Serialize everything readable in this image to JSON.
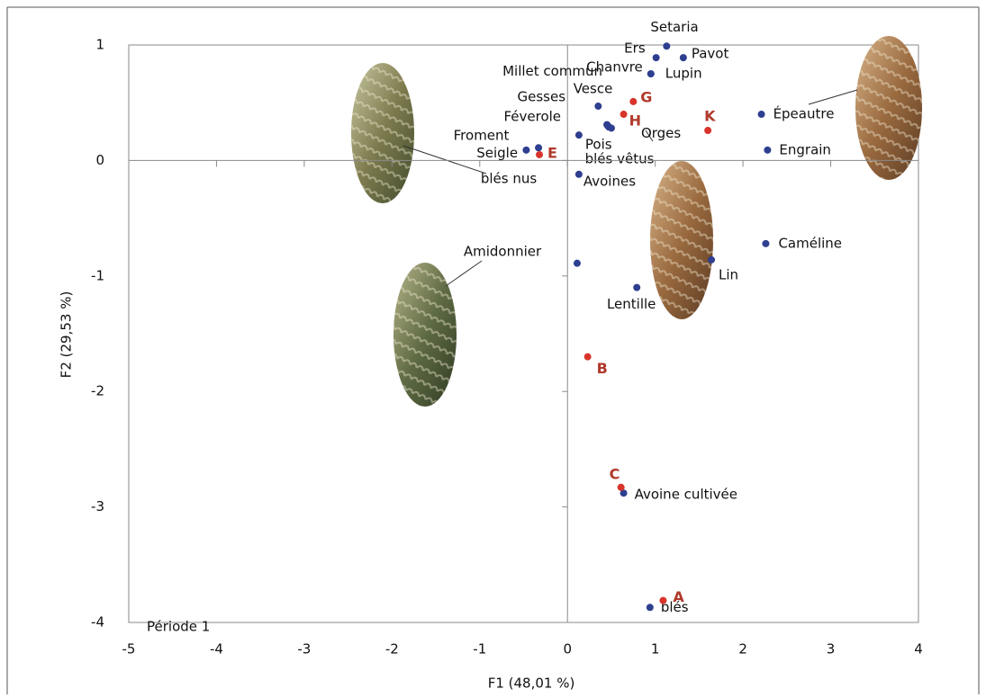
{
  "chart_data": {
    "type": "scatter",
    "x_label": "F1 (48,01 %)",
    "y_label": "F2 (29,53 %)",
    "xlim": [
      -5,
      4
    ],
    "ylim": [
      -4,
      1
    ],
    "xticks": [
      -5,
      -4,
      -3,
      -2,
      -1,
      0,
      1,
      2,
      3,
      4
    ],
    "yticks": [
      -4,
      -3,
      -2,
      -1,
      0,
      1
    ],
    "annotations": [
      "Période 1",
      "blés nus",
      "blés vêtus",
      "Amidonnier"
    ],
    "series": [
      {
        "color": "#2e3f8f",
        "labels": [
          "Setaria",
          "Ers",
          "Pavot",
          "Chanvre",
          "Lupin",
          "Vesce",
          "Millet commun",
          "Gesses",
          "Féverole",
          "Orges",
          "Pois",
          "Froment",
          "Seigle",
          "Avoines",
          "Épeautre",
          "Engrain",
          "Caméline",
          "Lin",
          null,
          "Lentille",
          "Avoine cultivée",
          "blés"
        ],
        "x": [
          1.13,
          1.01,
          1.32,
          0.95,
          0.95,
          0.35,
          0.45,
          0.47,
          0.46,
          0.5,
          0.13,
          -0.47,
          -0.33,
          0.13,
          2.21,
          2.28,
          2.26,
          1.64,
          0.11,
          0.79,
          0.64,
          0.94
        ],
        "values": [
          0.99,
          0.89,
          0.89,
          0.75,
          0.75,
          0.47,
          0.31,
          0.29,
          0.3,
          0.28,
          0.22,
          0.09,
          0.11,
          -0.12,
          0.4,
          0.09,
          -0.72,
          -0.86,
          -0.89,
          -1.1,
          -2.88,
          -3.87
        ]
      },
      {
        "color": "#d9342b",
        "label_color": "#b0392b",
        "labels": [
          "G",
          "H",
          "K",
          "E",
          "B",
          "C",
          "A"
        ],
        "x": [
          0.75,
          0.64,
          1.6,
          -0.32,
          0.23,
          0.61,
          1.09
        ],
        "values": [
          0.51,
          0.4,
          0.26,
          0.05,
          -1.7,
          -2.83,
          -3.81
        ]
      }
    ]
  }
}
